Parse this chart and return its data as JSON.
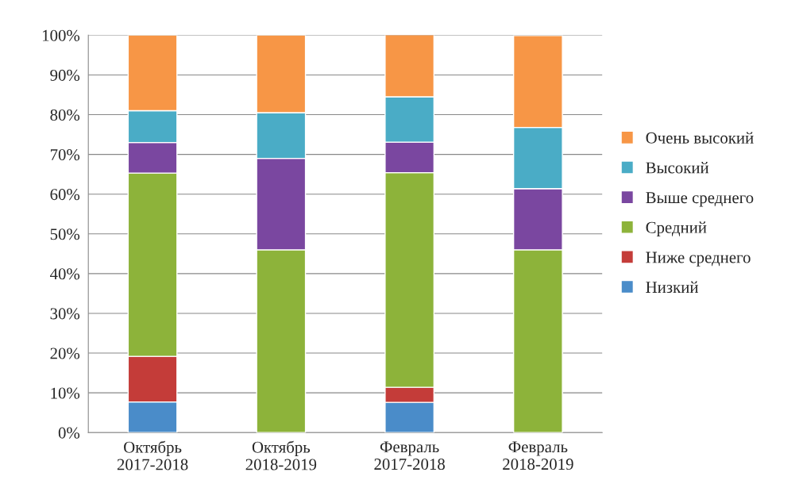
{
  "chart_data": {
    "type": "bar",
    "stacked": true,
    "categories": [
      "Октябрь\n2017-2018",
      "Октябрь\n2018-2019",
      "Февраль\n2017-2018",
      "Февраль\n2018-2019"
    ],
    "series": [
      {
        "name": "Низкий",
        "color": "#4a8cc9",
        "values": [
          7.7,
          0,
          7.6,
          0
        ]
      },
      {
        "name": "Ниже среднего",
        "color": "#c43c39",
        "values": [
          11.5,
          0,
          3.8,
          0
        ]
      },
      {
        "name": "Средний",
        "color": "#8db33a",
        "values": [
          46.1,
          46.0,
          54.0,
          46.0
        ]
      },
      {
        "name": "Выше среднего",
        "color": "#7a47a0",
        "values": [
          7.7,
          23.0,
          7.7,
          15.4
        ]
      },
      {
        "name": "Высокий",
        "color": "#4aacc6",
        "values": [
          8.0,
          11.5,
          11.4,
          15.4
        ]
      },
      {
        "name": "Очень высокий",
        "color": "#f79646",
        "values": [
          19.0,
          19.5,
          15.7,
          23.1
        ]
      }
    ],
    "ylim": [
      0,
      100
    ],
    "yticks": [
      {
        "value": 0,
        "label": "0%"
      },
      {
        "value": 10,
        "label": "10%"
      },
      {
        "value": 20,
        "label": "20%"
      },
      {
        "value": 30,
        "label": "30%"
      },
      {
        "value": 40,
        "label": "40%"
      },
      {
        "value": 50,
        "label": "50%"
      },
      {
        "value": 60,
        "label": "60%"
      },
      {
        "value": 70,
        "label": "70%"
      },
      {
        "value": 80,
        "label": "80%"
      },
      {
        "value": 90,
        "label": "90%"
      },
      {
        "value": 100,
        "label": "100%"
      }
    ],
    "grid": "y",
    "legend": "right"
  }
}
